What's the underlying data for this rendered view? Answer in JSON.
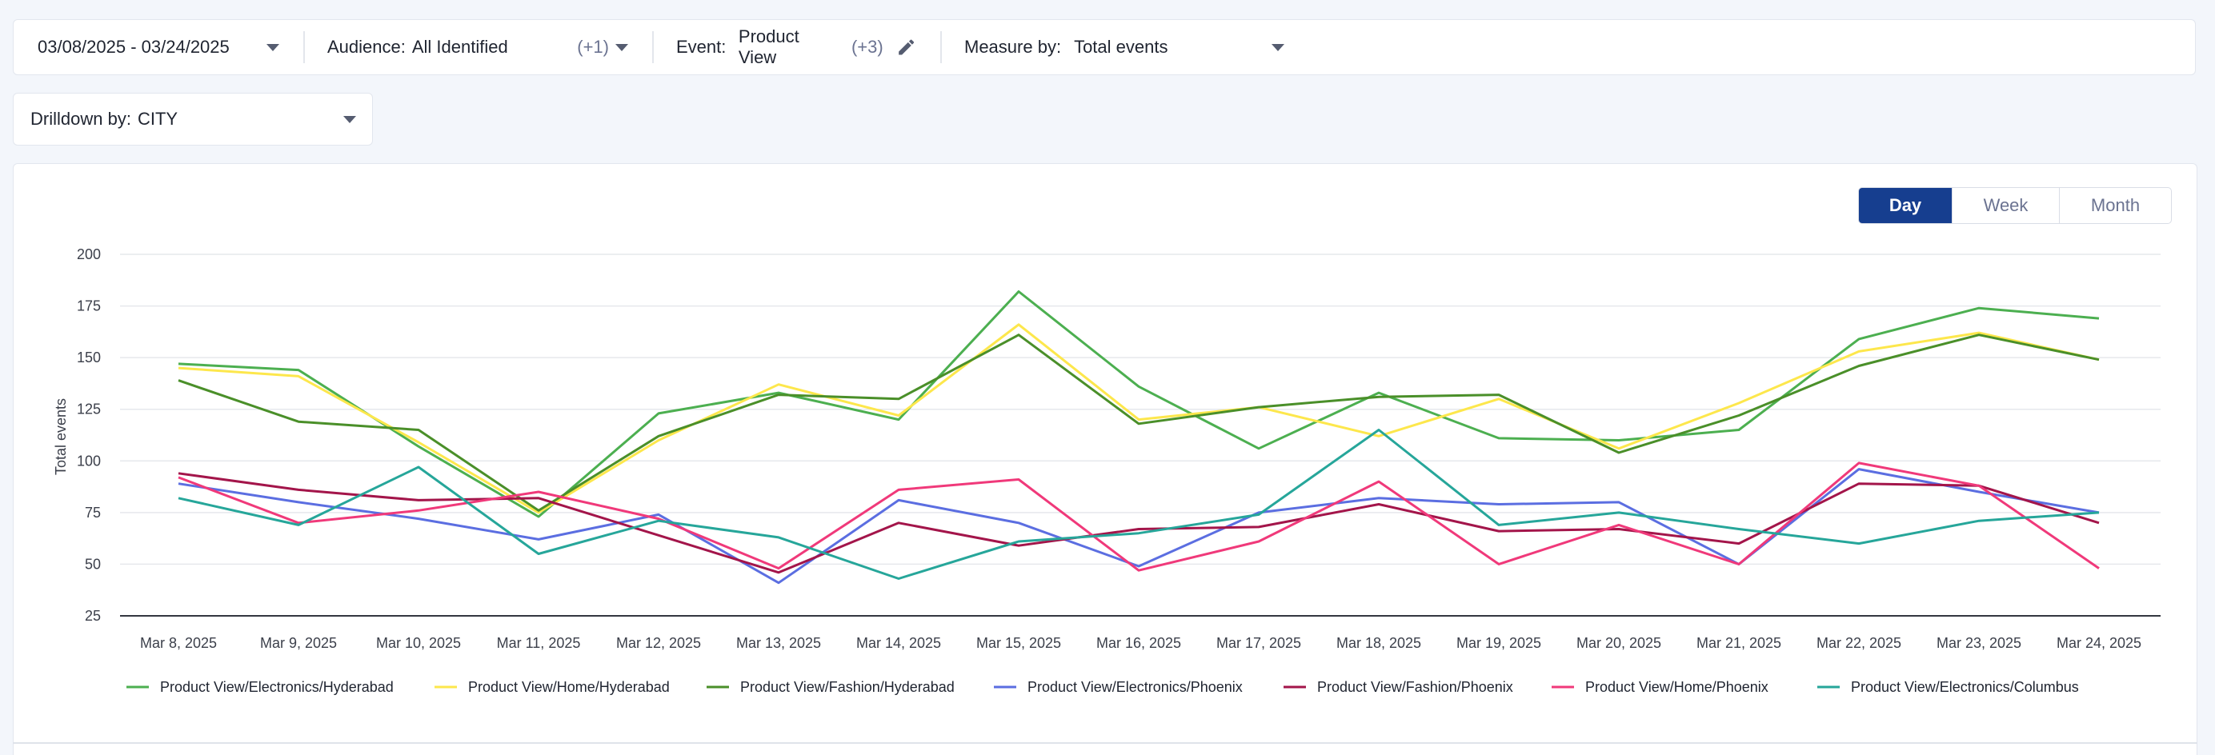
{
  "filters": {
    "date_range": "03/08/2025 - 03/24/2025",
    "audience_label": "Audience:",
    "audience_value": "All Identified",
    "audience_extra": "(+1)",
    "event_label": "Event:",
    "event_value": "Product View",
    "event_extra": "(+3)",
    "measure_label": "Measure by:",
    "measure_value": "Total events"
  },
  "drilldown": {
    "label": "Drilldown by:",
    "value": "CITY"
  },
  "granularity": {
    "options": [
      "Day",
      "Week",
      "Month"
    ],
    "selected": "Day"
  },
  "icons": {
    "edit": "pencil-icon",
    "dropdown": "chevron-down-icon"
  },
  "chart_data": {
    "type": "line",
    "title": "",
    "xlabel": "",
    "ylabel": "Total events",
    "ylim": [
      25,
      200
    ],
    "yticks": [
      25,
      50,
      75,
      100,
      125,
      150,
      175,
      200
    ],
    "grid": true,
    "legend_position": "bottom",
    "categories": [
      "Mar 8, 2025",
      "Mar 9, 2025",
      "Mar 10, 2025",
      "Mar 11, 2025",
      "Mar 12, 2025",
      "Mar 13, 2025",
      "Mar 14, 2025",
      "Mar 15, 2025",
      "Mar 16, 2025",
      "Mar 17, 2025",
      "Mar 18, 2025",
      "Mar 19, 2025",
      "Mar 20, 2025",
      "Mar 21, 2025",
      "Mar 22, 2025",
      "Mar 23, 2025",
      "Mar 24, 2025"
    ],
    "series": [
      {
        "name": "Product View/Electronics/Hyderabad",
        "color": "#4caf50",
        "values": [
          147,
          144,
          107,
          73,
          123,
          133,
          120,
          182,
          136,
          106,
          133,
          111,
          110,
          115,
          159,
          174,
          169
        ]
      },
      {
        "name": "Product View/Home/Hyderabad",
        "color": "#fde74c",
        "values": [
          145,
          141,
          109,
          75,
          110,
          137,
          122,
          166,
          120,
          126,
          112,
          130,
          106,
          128,
          153,
          162,
          149
        ]
      },
      {
        "name": "Product View/Fashion/Hyderabad",
        "color": "#4a8f29",
        "values": [
          139,
          119,
          115,
          76,
          112,
          132,
          130,
          161,
          118,
          126,
          131,
          132,
          104,
          122,
          146,
          161,
          149
        ]
      },
      {
        "name": "Product View/Electronics/Phoenix",
        "color": "#5b6ee1",
        "values": [
          89,
          80,
          72,
          62,
          74,
          41,
          81,
          70,
          49,
          75,
          82,
          79,
          80,
          50,
          96,
          85,
          75
        ]
      },
      {
        "name": "Product View/Fashion/Phoenix",
        "color": "#a3154a",
        "values": [
          94,
          86,
          81,
          82,
          64,
          46,
          70,
          59,
          67,
          68,
          79,
          66,
          67,
          60,
          89,
          88,
          70
        ]
      },
      {
        "name": "Product View/Home/Phoenix",
        "color": "#f0397a",
        "values": [
          92,
          70,
          76,
          85,
          72,
          48,
          86,
          91,
          47,
          61,
          90,
          50,
          69,
          50,
          99,
          88,
          48
        ]
      },
      {
        "name": "Product View/Electronics/Columbus",
        "color": "#26a69a",
        "values": [
          82,
          69,
          97,
          55,
          71,
          63,
          43,
          61,
          65,
          74,
          115,
          69,
          75,
          67,
          60,
          71,
          75
        ]
      }
    ]
  }
}
